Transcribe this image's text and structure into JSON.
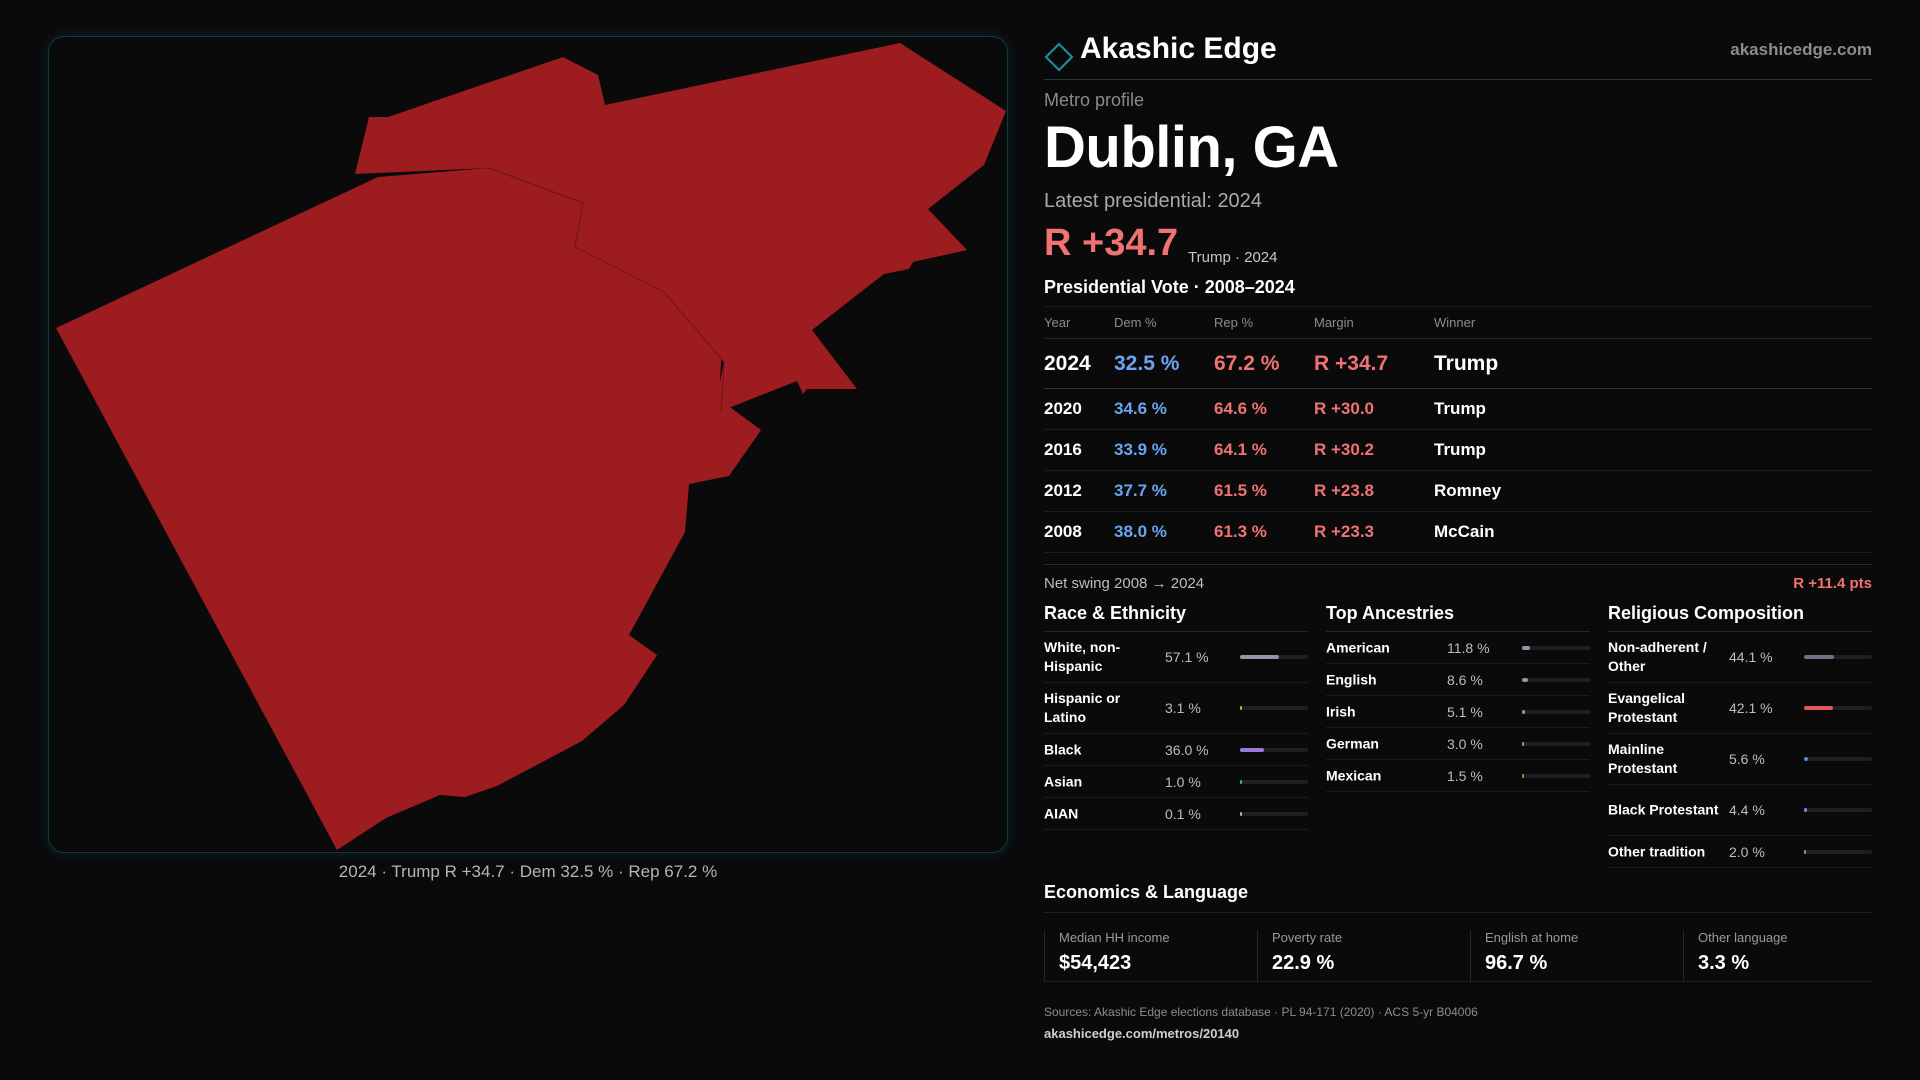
{
  "brand": {
    "name": "Akashic Edge",
    "site": "akashicedge.com"
  },
  "map": {
    "fill_color": "#9c1c1f",
    "caption": "2024 · Trump R +34.7 · Dem 32.5 % · Rep 67.2 %"
  },
  "profile": {
    "kicker": "Metro profile",
    "title": "Dublin, GA",
    "latest_label": "Latest presidential: 2024",
    "margin": "R +34.7",
    "margin_sub": "Trump · 2024"
  },
  "vote_table": {
    "title": "Presidential Vote · 2008–2024",
    "headers": {
      "year": "Year",
      "dem": "Dem %",
      "rep": "Rep %",
      "margin": "Margin",
      "winner": "Winner"
    },
    "rows": [
      {
        "year": "2024",
        "dem": "32.5 %",
        "rep": "67.2 %",
        "margin": "R +34.7",
        "winner": "Trump"
      },
      {
        "year": "2020",
        "dem": "34.6 %",
        "rep": "64.6 %",
        "margin": "R +30.0",
        "winner": "Trump"
      },
      {
        "year": "2016",
        "dem": "33.9 %",
        "rep": "64.1 %",
        "margin": "R +30.2",
        "winner": "Trump"
      },
      {
        "year": "2012",
        "dem": "37.7 %",
        "rep": "61.5 %",
        "margin": "R +23.8",
        "winner": "Romney"
      },
      {
        "year": "2008",
        "dem": "38.0 %",
        "rep": "61.3 %",
        "margin": "R +23.3",
        "winner": "McCain"
      }
    ],
    "swing_label": "Net swing 2008 → 2024",
    "swing_value": "R +11.4 pts"
  },
  "colors": {
    "dem": "#6aa5f2",
    "rep": "#f07272",
    "accent": "#1e8a9a"
  },
  "race": {
    "title": "Race & Ethnicity",
    "items": [
      {
        "label": "White, non-Hispanic",
        "value": "57.1 %",
        "fraction": 0.571,
        "color": "#8e96a8"
      },
      {
        "label": "Hispanic or Latino",
        "value": "3.1 %",
        "fraction": 0.031,
        "color": "#e0a030"
      },
      {
        "label": "Black",
        "value": "36.0 %",
        "fraction": 0.36,
        "color": "#9b7ae0"
      },
      {
        "label": "Asian",
        "value": "1.0 %",
        "fraction": 0.01,
        "color": "#40b0a0"
      },
      {
        "label": "AIAN",
        "value": "0.1 %",
        "fraction": 0.001,
        "color": "#b0b0b0"
      }
    ]
  },
  "ancestry": {
    "title": "Top Ancestries",
    "items": [
      {
        "label": "American",
        "value": "11.8 %",
        "fraction": 0.118,
        "color": "#8e96a8"
      },
      {
        "label": "English",
        "value": "8.6 %",
        "fraction": 0.086,
        "color": "#8e96a8"
      },
      {
        "label": "Irish",
        "value": "5.1 %",
        "fraction": 0.051,
        "color": "#8e96a8"
      },
      {
        "label": "German",
        "value": "3.0 %",
        "fraction": 0.03,
        "color": "#8e96a8"
      },
      {
        "label": "Mexican",
        "value": "1.5 %",
        "fraction": 0.015,
        "color": "#c08040"
      }
    ]
  },
  "religion": {
    "title": "Religious Composition",
    "items": [
      {
        "label": "Non-adherent / Other",
        "value": "44.1 %",
        "fraction": 0.441,
        "color": "#6c7486"
      },
      {
        "label": "Evangelical Protestant",
        "value": "42.1 %",
        "fraction": 0.421,
        "color": "#e05a5a"
      },
      {
        "label": "Mainline Protestant",
        "value": "5.6 %",
        "fraction": 0.056,
        "color": "#5a8ae0"
      },
      {
        "label": "Black Protestant",
        "value": "4.4 %",
        "fraction": 0.044,
        "color": "#8a7ae0"
      },
      {
        "label": "Other tradition",
        "value": "2.0 %",
        "fraction": 0.02,
        "color": "#909090"
      }
    ]
  },
  "economics": {
    "title": "Economics & Language",
    "items": [
      {
        "label": "Median HH income",
        "value": "$54,423"
      },
      {
        "label": "Poverty rate",
        "value": "22.9 %"
      },
      {
        "label": "English at home",
        "value": "96.7 %"
      },
      {
        "label": "Other language",
        "value": "3.3 %"
      }
    ]
  },
  "footer": {
    "sources": "Sources: Akashic Edge elections database · PL 94-171 (2020) · ACS 5-yr B04006",
    "url": "akashicedge.com/metros/20140"
  }
}
